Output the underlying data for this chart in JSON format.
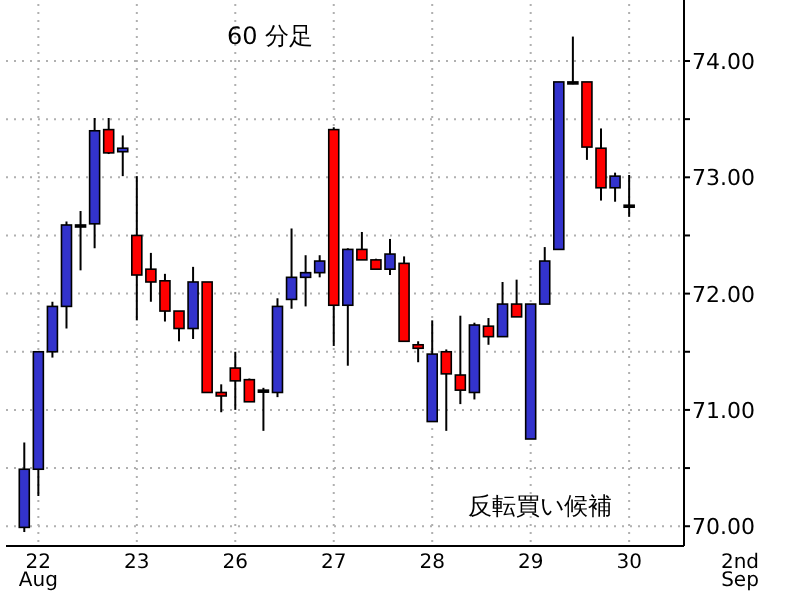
{
  "chart_data": {
    "type": "candlestick",
    "title": "60 分足",
    "annotations": [
      "反転買い候補",
      "2nd Sep"
    ],
    "categories": [
      null,
      "22 Aug",
      null,
      null,
      null,
      null,
      null,
      null,
      "23",
      null,
      null,
      null,
      null,
      null,
      null,
      "26",
      null,
      null,
      null,
      null,
      null,
      null,
      "27",
      null,
      null,
      null,
      null,
      null,
      null,
      "28",
      null,
      null,
      null,
      null,
      null,
      null,
      "29",
      null,
      null,
      null,
      null,
      null,
      null,
      "30"
    ],
    "ohlc": [
      [
        69.99,
        70.72,
        69.95,
        70.49
      ],
      [
        70.49,
        71.5,
        70.26,
        71.5
      ],
      [
        71.5,
        71.93,
        71.45,
        71.89
      ],
      [
        71.89,
        72.62,
        71.7,
        72.59
      ],
      [
        72.59,
        72.71,
        72.2,
        72.59
      ],
      [
        72.6,
        73.51,
        72.39,
        73.4
      ],
      [
        73.41,
        73.51,
        73.2,
        73.21
      ],
      [
        73.22,
        73.36,
        73.01,
        73.25
      ],
      [
        72.5,
        73.01,
        71.77,
        72.16
      ],
      [
        72.21,
        72.35,
        71.93,
        72.1
      ],
      [
        72.11,
        72.17,
        71.76,
        71.85
      ],
      [
        71.85,
        71.85,
        71.59,
        71.7
      ],
      [
        71.7,
        72.23,
        71.61,
        72.1
      ],
      [
        72.1,
        72.1,
        71.15,
        71.15
      ],
      [
        71.15,
        71.22,
        70.98,
        71.12
      ],
      [
        71.36,
        71.5,
        71.0,
        71.25
      ],
      [
        71.26,
        71.27,
        71.07,
        71.07
      ],
      [
        71.17,
        71.19,
        70.82,
        71.17
      ],
      [
        71.15,
        71.96,
        71.11,
        71.89
      ],
      [
        71.95,
        72.56,
        71.87,
        72.14
      ],
      [
        72.14,
        72.33,
        71.89,
        72.18
      ],
      [
        72.18,
        72.33,
        72.14,
        72.28
      ],
      [
        73.41,
        73.43,
        71.55,
        71.9
      ],
      [
        71.9,
        72.39,
        71.38,
        72.38
      ],
      [
        72.38,
        72.53,
        72.29,
        72.29
      ],
      [
        72.29,
        72.3,
        72.21,
        72.21
      ],
      [
        72.21,
        72.47,
        72.16,
        72.34
      ],
      [
        72.26,
        72.32,
        71.59,
        71.59
      ],
      [
        71.56,
        71.59,
        71.41,
        71.53
      ],
      [
        70.9,
        71.77,
        70.9,
        71.48
      ],
      [
        71.5,
        71.52,
        70.82,
        71.31
      ],
      [
        71.3,
        71.81,
        71.05,
        71.17
      ],
      [
        71.15,
        71.75,
        71.09,
        71.73
      ],
      [
        71.72,
        71.79,
        71.56,
        71.63
      ],
      [
        71.63,
        72.1,
        71.63,
        71.91
      ],
      [
        71.91,
        72.12,
        71.8,
        71.8
      ],
      [
        70.75,
        71.91,
        70.75,
        71.91
      ],
      [
        71.91,
        72.4,
        71.91,
        72.28
      ],
      [
        72.38,
        73.82,
        72.38,
        73.82
      ],
      [
        73.82,
        74.21,
        73.8,
        73.82
      ],
      [
        73.82,
        73.82,
        73.15,
        73.26
      ],
      [
        73.25,
        73.42,
        72.8,
        72.91
      ],
      [
        72.91,
        73.04,
        72.79,
        73.01
      ],
      [
        72.76,
        73.02,
        72.66,
        72.76
      ]
    ],
    "colors": [
      "#3333cc",
      "#3333cc",
      "#3333cc",
      "#3333cc",
      "#000000",
      "#3333cc",
      "#ff0000",
      "#3333cc",
      "#ff0000",
      "#ff0000",
      "#ff0000",
      "#ff0000",
      "#3333cc",
      "#ff0000",
      "#ff0000",
      "#ff0000",
      "#ff0000",
      "#000000",
      "#3333cc",
      "#3333cc",
      "#3333cc",
      "#3333cc",
      "#ff0000",
      "#3333cc",
      "#ff0000",
      "#ff0000",
      "#3333cc",
      "#ff0000",
      "#ff0000",
      "#3333cc",
      "#ff0000",
      "#ff0000",
      "#3333cc",
      "#ff0000",
      "#3333cc",
      "#ff0000",
      "#3333cc",
      "#3333cc",
      "#3333cc",
      "#000000",
      "#ff0000",
      "#ff0000",
      "#3333cc",
      "#000000"
    ],
    "ylim": [
      69.83,
      74.49
    ],
    "yticks": [
      {
        "value": 70,
        "label": "70.00"
      },
      {
        "value": 70.5,
        "label": null
      },
      {
        "value": 71,
        "label": "71.00"
      },
      {
        "value": 71.5,
        "label": null
      },
      {
        "value": 72,
        "label": "72.00"
      },
      {
        "value": 72.5,
        "label": null
      },
      {
        "value": 73,
        "label": "73.00"
      },
      {
        "value": 73.5,
        "label": null
      },
      {
        "value": 74,
        "label": "74.00"
      }
    ],
    "grid": true
  }
}
